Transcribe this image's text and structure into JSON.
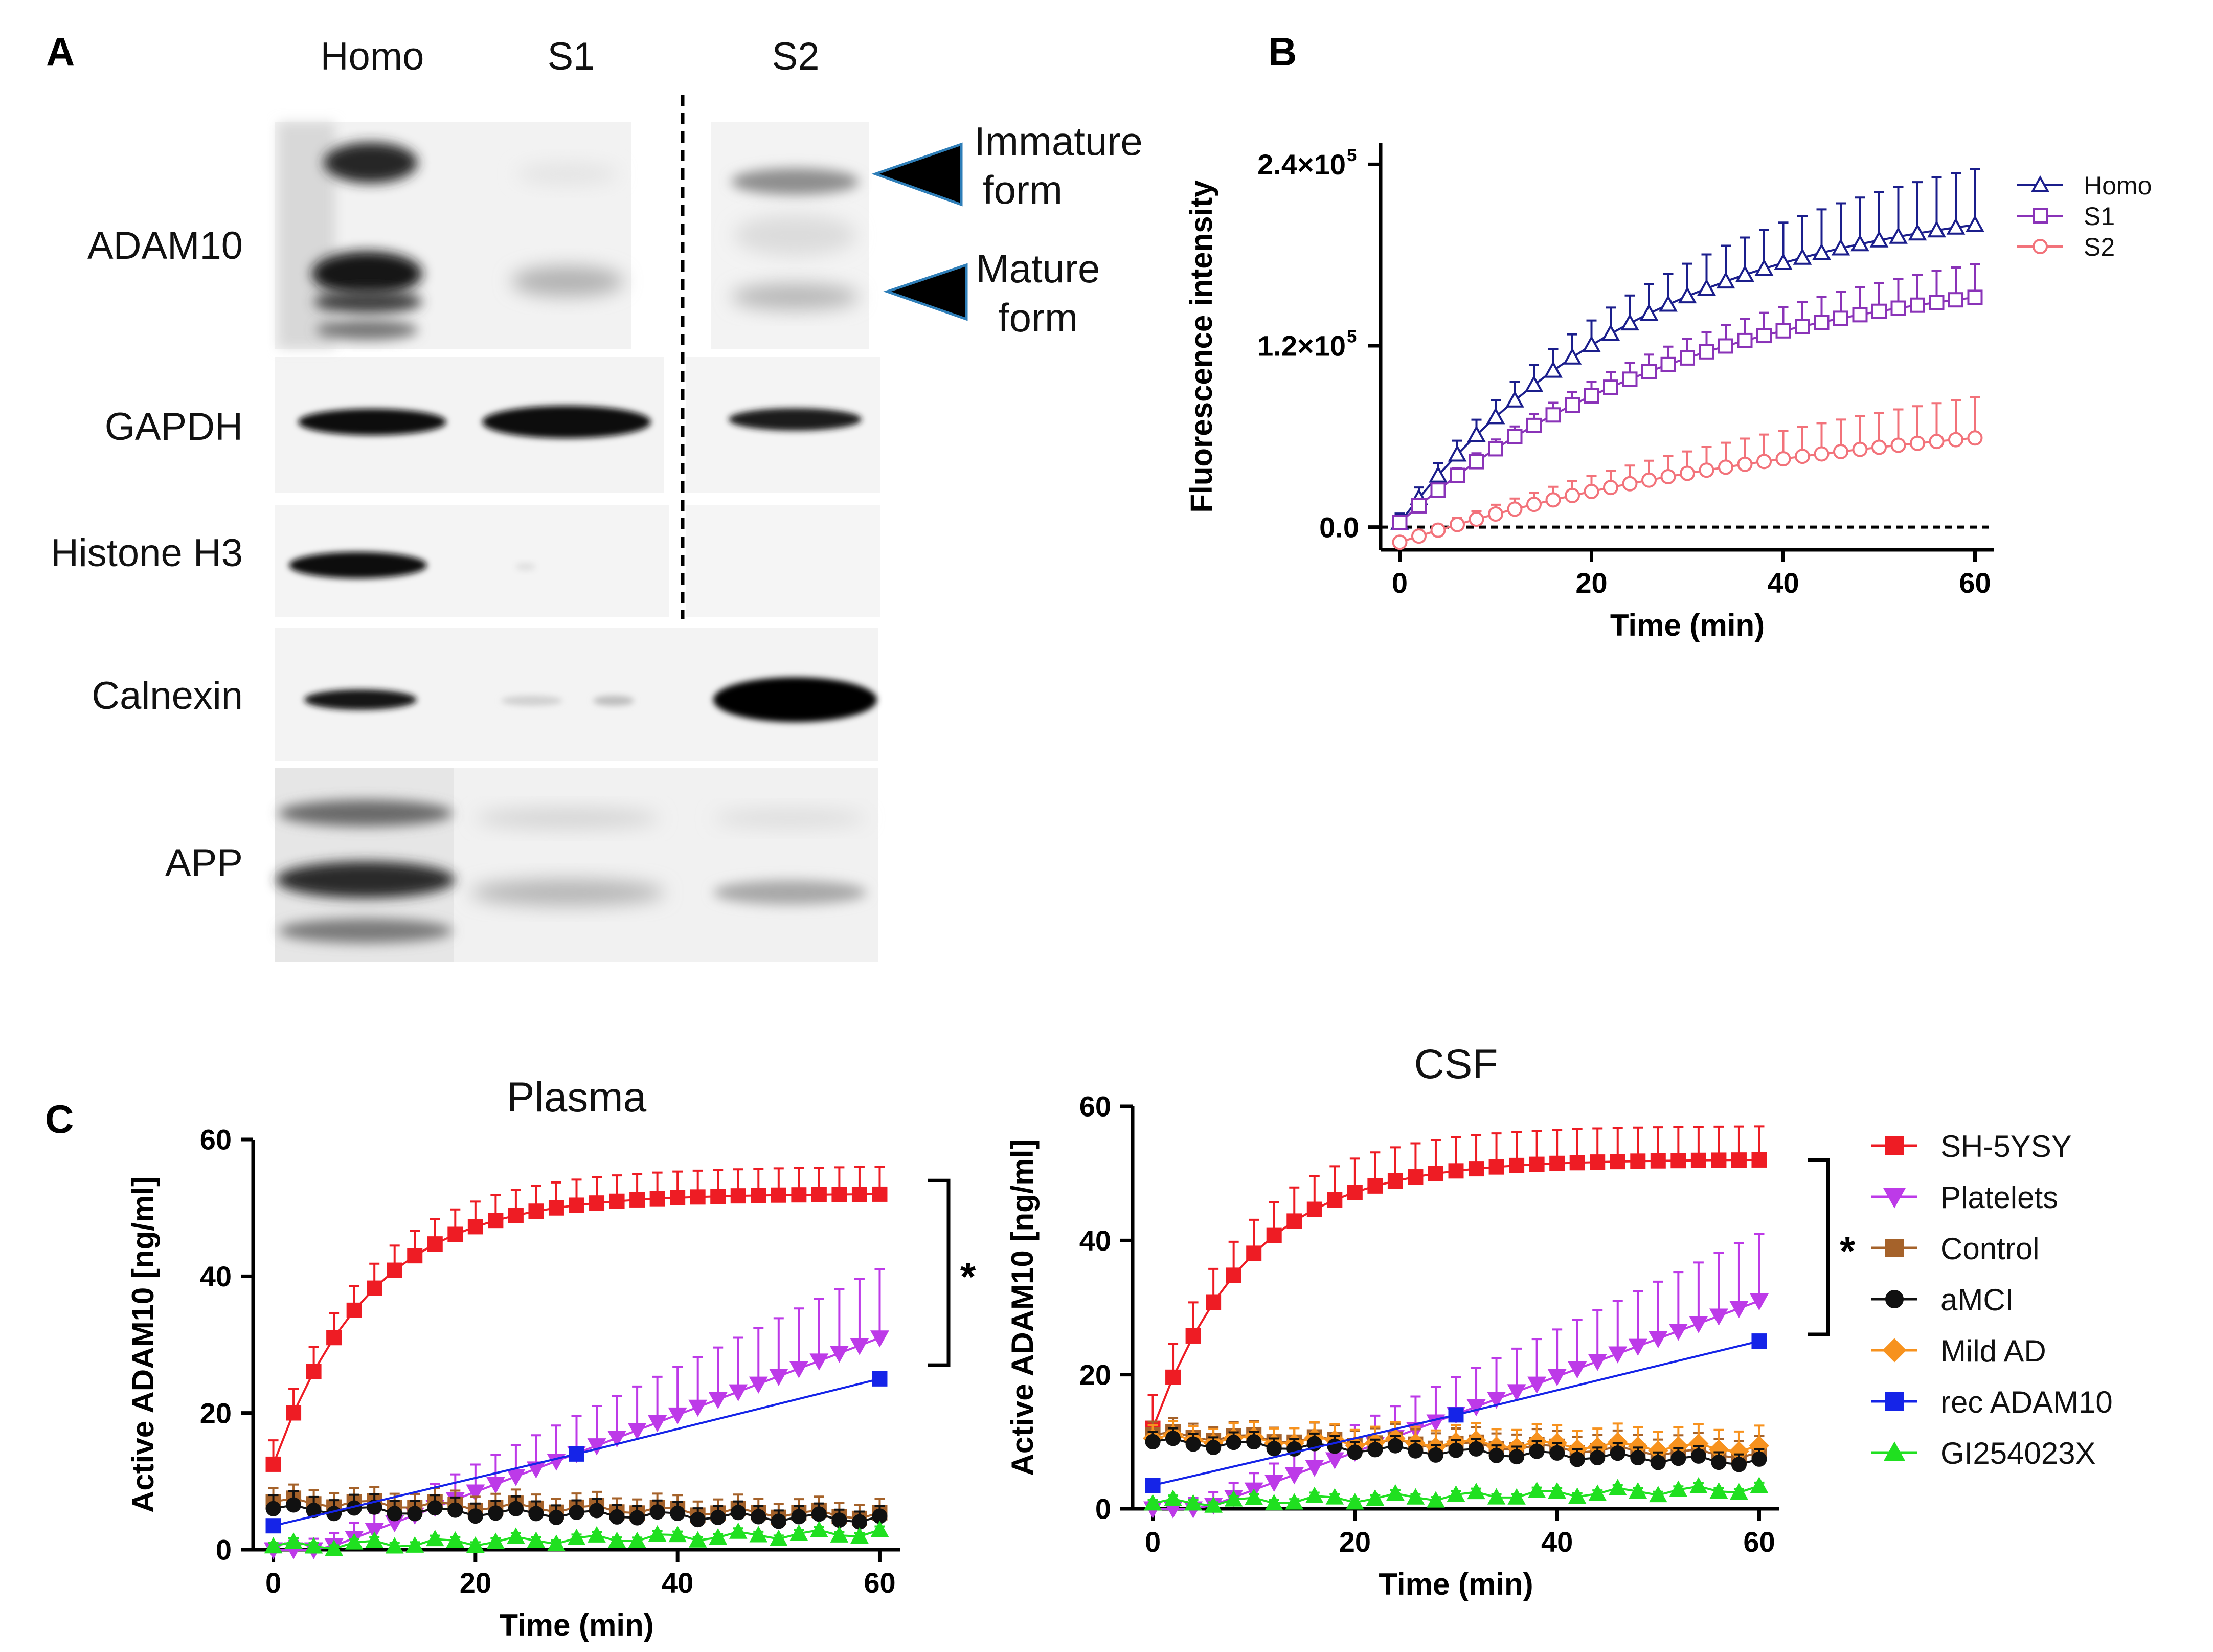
{
  "panels": {
    "a_label": "A",
    "b_label": "B",
    "c_label": "C"
  },
  "blot": {
    "lanes": [
      "Homo",
      "S1",
      "S2"
    ],
    "rows": [
      "ADAM10",
      "GAPDH",
      "Histone H3",
      "Calnexin",
      "APP"
    ],
    "annotations": {
      "immature": [
        "Immature",
        "form"
      ],
      "mature": [
        "Mature",
        "form"
      ]
    },
    "colors": {
      "arrow_fill": "#000000",
      "arrow_outline": "#2E7EB8",
      "background": "#F1F1F1"
    }
  },
  "chart_data": [
    {
      "id": "B",
      "type": "line",
      "title": "",
      "xlabel": "Time (min)",
      "ylabel": "Fluorescence intensity",
      "xlim": [
        -2,
        62
      ],
      "ylim": [
        -15000,
        254000
      ],
      "xticks": [
        0,
        20,
        40,
        60
      ],
      "yticks": [
        0,
        120000,
        240000
      ],
      "ytick_labels": [
        {
          "base": "0.0",
          "exp": ""
        },
        {
          "base": "1.2×10",
          "exp": "5"
        },
        {
          "base": "2.4×10",
          "exp": "5"
        }
      ],
      "xtick_labels": [
        "0",
        "20",
        "40",
        "60"
      ],
      "reference_line": 0,
      "legend": [
        "Homo",
        "S1",
        "S2"
      ],
      "series": [
        {
          "name": "Homo",
          "color": "#1B1E8C",
          "marker": "triangle-open",
          "start": 3000,
          "end": 200000,
          "tau": 26,
          "err_start": 6000,
          "err_end": 37000
        },
        {
          "name": "S1",
          "color": "#8A33B8",
          "marker": "square-open",
          "start": 3000,
          "end": 152000,
          "tau": 30,
          "err_start": 3000,
          "err_end": 22000
        },
        {
          "name": "S2",
          "color": "#F2727A",
          "marker": "circle-open",
          "start": -10000,
          "end": 59000,
          "tau": 45,
          "err_start": 2000,
          "err_end": 27000
        }
      ]
    },
    {
      "id": "C-plasma",
      "type": "line",
      "title": "Plasma",
      "xlabel": "Time (min)",
      "ylabel": "Active ADAM10 [ng/ml]",
      "xlim": [
        -2,
        62
      ],
      "ylim": [
        0,
        60
      ],
      "xticks": [
        0,
        20,
        40,
        60
      ],
      "yticks": [
        0,
        20,
        40,
        60
      ],
      "xtick_labels": [
        "0",
        "20",
        "40",
        "60"
      ],
      "ytick_labels": [
        "0",
        "20",
        "40",
        "60"
      ],
      "significance": "*",
      "series": [
        {
          "name": "SH-5YSY",
          "color": "#EE1C24",
          "marker": "square",
          "start": 12.5,
          "end": 52,
          "tau": 9.5,
          "err_start": 3.5,
          "err_end": 4
        },
        {
          "name": "Platelets",
          "color": "#BD3AE8",
          "marker": "triangle-down",
          "start": 0,
          "end": 31,
          "ramp_start": 5,
          "err_start": 1,
          "err_end": 10
        },
        {
          "name": "Control",
          "color": "#A5622A",
          "marker": "square",
          "start": 7,
          "end": 5,
          "err_start": 2,
          "err_end": 2
        },
        {
          "name": "aMCI",
          "color": "#111111",
          "marker": "circle",
          "start": 6,
          "end": 4.5,
          "err_start": 2,
          "err_end": 1.5
        },
        {
          "name": "GI254023X",
          "color": "#20E020",
          "marker": "triangle-up",
          "start": 0.5,
          "end": 2.5,
          "err_start": 0.5,
          "err_end": 0.5
        },
        {
          "name": "rec ADAM10",
          "color": "#1524E8",
          "marker": "square",
          "line_only": true,
          "x": [
            0,
            30,
            60
          ],
          "y": [
            3.5,
            14,
            25
          ]
        }
      ]
    },
    {
      "id": "C-csf",
      "type": "line",
      "title": "CSF",
      "xlabel": "Time (min)",
      "ylabel": "Active ADAM10 [ng/ml]",
      "xlim": [
        -2,
        62
      ],
      "ylim": [
        0,
        60
      ],
      "xticks": [
        0,
        20,
        40,
        60
      ],
      "yticks": [
        0,
        20,
        40,
        60
      ],
      "xtick_labels": [
        "0",
        "20",
        "40",
        "60"
      ],
      "ytick_labels": [
        "0",
        "20",
        "40",
        "60"
      ],
      "significance": "*",
      "series": [
        {
          "name": "SH-5YSY",
          "color": "#EE1C24",
          "marker": "square",
          "start": 12,
          "end": 52,
          "tau": 9.5,
          "err_start": 5,
          "err_end": 5
        },
        {
          "name": "Platelets",
          "color": "#BD3AE8",
          "marker": "triangle-down",
          "start": 0,
          "end": 31,
          "ramp_start": 5,
          "err_start": 1,
          "err_end": 10
        },
        {
          "name": "Control",
          "color": "#A5622A",
          "marker": "square",
          "start": 11,
          "end": 8,
          "err_start": 2,
          "err_end": 2.5
        },
        {
          "name": "Mild AD",
          "color": "#F7921E",
          "marker": "diamond",
          "start": 10.5,
          "end": 9,
          "err_start": 2,
          "err_end": 3
        },
        {
          "name": "aMCI",
          "color": "#111111",
          "marker": "circle",
          "start": 10,
          "end": 7,
          "err_start": 1.5,
          "err_end": 1.5
        },
        {
          "name": "GI254023X",
          "color": "#20E020",
          "marker": "triangle-up",
          "start": 0.8,
          "end": 3,
          "err_start": 0.5,
          "err_end": 0.5
        },
        {
          "name": "rec ADAM10",
          "color": "#1524E8",
          "marker": "square",
          "line_only": true,
          "x": [
            0,
            30,
            60
          ],
          "y": [
            3.5,
            14,
            25
          ]
        }
      ],
      "legend": [
        {
          "name": "SH-5YSY",
          "color": "#EE1C24",
          "marker": "square"
        },
        {
          "name": "Platelets",
          "color": "#BD3AE8",
          "marker": "triangle-down"
        },
        {
          "name": "Control",
          "color": "#A5622A",
          "marker": "square"
        },
        {
          "name": "aMCI",
          "color": "#111111",
          "marker": "circle"
        },
        {
          "name": "Mild AD",
          "color": "#F7921E",
          "marker": "diamond"
        },
        {
          "name": "rec ADAM10",
          "color": "#1524E8",
          "marker": "square"
        },
        {
          "name": "GI254023X",
          "color": "#20E020",
          "marker": "triangle-up"
        }
      ]
    }
  ]
}
